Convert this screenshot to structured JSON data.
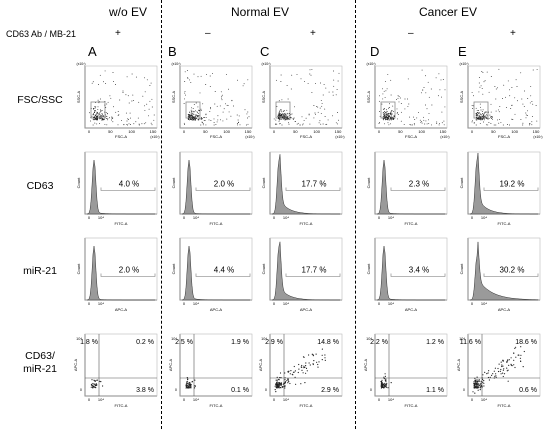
{
  "headers": {
    "group_a": "w/o EV",
    "group_normal": "Normal EV",
    "group_cancer": "Cancer EV",
    "condition": "CD63 Ab / MB-21"
  },
  "columns": [
    {
      "letter": "A",
      "sign": "+"
    },
    {
      "letter": "B",
      "sign": "–"
    },
    {
      "letter": "C",
      "sign": "+"
    },
    {
      "letter": "D",
      "sign": "–"
    },
    {
      "letter": "E",
      "sign": "+"
    }
  ],
  "row_labels": {
    "fsc": "FSC/SSC",
    "cd63": "CD63",
    "mir": "miR-21",
    "dual_line1": "CD63/",
    "dual_line2": "miR-21"
  },
  "axes": {
    "scatter_y": "SSC-A",
    "scatter_y_scale": "(x10³)",
    "scatter_x": "FSC-A",
    "scatter_x_scale": "(x10³)",
    "scatter_ticks": [
      "0",
      "50",
      "100",
      "150"
    ],
    "count": "Count",
    "fitc": "FITC-A",
    "apc": "APC-A",
    "hist_ticks": [
      "0",
      "10⁴"
    ],
    "dual_x_ticks": [
      "0",
      "10⁴"
    ],
    "dual_y_ticks": [
      "10⁴",
      "0"
    ]
  },
  "cd63_percent": [
    "4.0 %",
    "2.0 %",
    "17.7 %",
    "2.3 %",
    "19.2 %"
  ],
  "mir21_percent": [
    "2.0 %",
    "4.4 %",
    "17.7 %",
    "3.4 %",
    "30.2 %"
  ],
  "quadrants": [
    {
      "ul": "1.8 %",
      "ur": "0.2 %",
      "lr": "3.8 %"
    },
    {
      "ul": "2.5 %",
      "ur": "1.9 %",
      "lr": "0.1 %"
    },
    {
      "ul": "2.9 %",
      "ur": "14.8 %",
      "lr": "2.9 %"
    },
    {
      "ul": "2.2 %",
      "ur": "1.2 %",
      "lr": "1.1 %"
    },
    {
      "ul": "11.6 %",
      "ur": "18.6 %",
      "lr": "0.6 %"
    }
  ],
  "colors": {
    "hist_fill": "#9a9a9a",
    "gate": "#8a8a8a",
    "dots": "#222222"
  }
}
